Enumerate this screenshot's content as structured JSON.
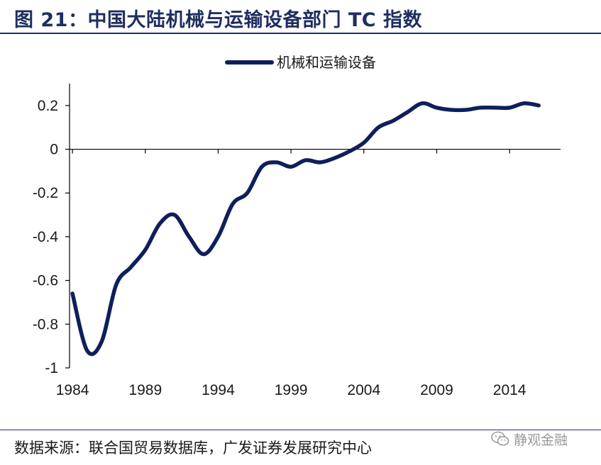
{
  "header": {
    "title": "图 21：中国大陆机械与运输设备部门 TC 指数"
  },
  "footer": {
    "source": "数据来源：联合国贸易数据库，广发证券发展研究中心",
    "watermark": "静观金融"
  },
  "colors": {
    "line": "#0e1f5b",
    "title": "#1f2e60"
  },
  "icons": {
    "watermark": "wechat-icon"
  },
  "chart_data": {
    "type": "line",
    "title": "",
    "xlabel": "",
    "ylabel": "",
    "x_ticks": [
      1984,
      1989,
      1994,
      1999,
      2004,
      2009,
      2014
    ],
    "y_ticks": [
      0.2,
      0,
      -0.2,
      -0.4,
      -0.6,
      -0.8,
      -1
    ],
    "y_tick_labels": [
      "0.2",
      "0",
      "-0.2",
      "-0.4",
      "-0.6",
      "-0.8",
      "-1"
    ],
    "xlim": [
      1983.8,
      2017.5
    ],
    "ylim": [
      -1,
      0.3
    ],
    "grid": false,
    "legend": "top-center",
    "series": [
      {
        "name": "机械和运输设备",
        "x": [
          1984,
          1985,
          1986,
          1987,
          1988,
          1989,
          1990,
          1991,
          1992,
          1993,
          1994,
          1995,
          1996,
          1997,
          1998,
          1999,
          2000,
          2001,
          2002,
          2003,
          2004,
          2005,
          2006,
          2007,
          2008,
          2009,
          2010,
          2011,
          2012,
          2013,
          2014,
          2015,
          2016
        ],
        "values": [
          -0.66,
          -0.92,
          -0.88,
          -0.62,
          -0.54,
          -0.46,
          -0.34,
          -0.3,
          -0.4,
          -0.48,
          -0.4,
          -0.25,
          -0.2,
          -0.08,
          -0.06,
          -0.08,
          -0.05,
          -0.06,
          -0.04,
          -0.01,
          0.03,
          0.1,
          0.13,
          0.17,
          0.21,
          0.19,
          0.18,
          0.18,
          0.19,
          0.19,
          0.19,
          0.21,
          0.2
        ]
      }
    ]
  }
}
